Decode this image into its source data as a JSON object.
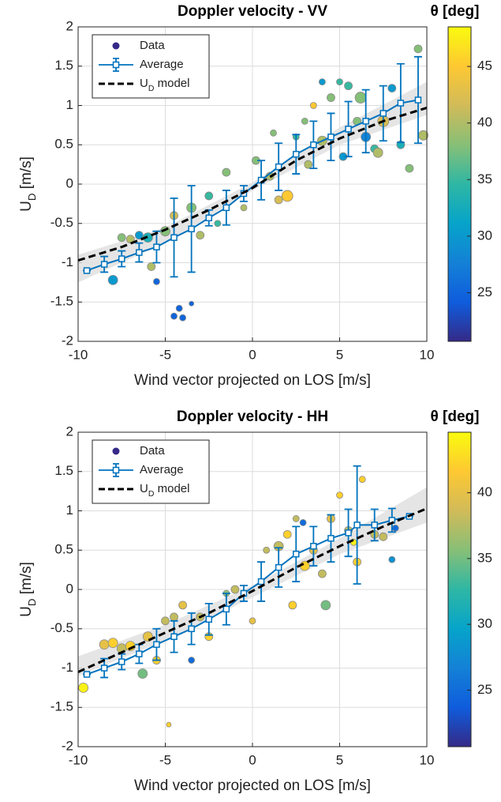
{
  "chart_data": [
    {
      "type": "scatter",
      "title": "Doppler velocity - VV",
      "xlabel": "Wind vector projected on LOS [m/s]",
      "ylabel": [
        "U",
        "D",
        " [m/s]"
      ],
      "xlim": [
        -10,
        10
      ],
      "ylim": [
        -2,
        2
      ],
      "xticks": [
        -10,
        -5,
        0,
        5,
        10
      ],
      "yticks": [
        -2,
        -1.5,
        -1,
        -0.5,
        0,
        0.5,
        1,
        1.5,
        2
      ],
      "grid": true,
      "legend": "upper left",
      "band": {
        "color": "#e0e0e0",
        "x": [
          -10,
          -5,
          0,
          5,
          10
        ],
        "lower": [
          -1.25,
          -0.75,
          -0.08,
          0.5,
          0.88
        ],
        "upper": [
          -0.9,
          -0.55,
          0.02,
          0.72,
          1.3
        ]
      },
      "series": [
        {
          "name": "Data",
          "style": "markers",
          "color": "#352a87",
          "x": [
            -8,
            -7.5,
            -7,
            -6.5,
            -6,
            -5.8,
            -5.5,
            -5,
            -4.5,
            -4.2,
            -4,
            -3.5,
            -4.5,
            -3.5,
            -3,
            -2.5,
            -2,
            -1.5,
            -0.5,
            0.2,
            1,
            1.2,
            1.5,
            2,
            2.5,
            3,
            3.2,
            3.5,
            4,
            4.5,
            5,
            5.2,
            5.5,
            6,
            6.2,
            6.5,
            7,
            7.5,
            8,
            8.5,
            9,
            9.5,
            9.8,
            4,
            7.2
          ],
          "y": [
            -1.22,
            -0.68,
            -0.7,
            -0.65,
            -0.68,
            -1.05,
            -1.24,
            -0.6,
            -1.68,
            -1.58,
            -1.7,
            -1.52,
            -0.4,
            -0.3,
            -0.65,
            -0.15,
            -0.5,
            0.15,
            -0.3,
            0.3,
            0.1,
            0.65,
            -0.2,
            -0.15,
            0.6,
            0.8,
            0.25,
            1.0,
            0.55,
            1.1,
            1.3,
            0.35,
            1.25,
            0.8,
            1.1,
            0.6,
            0.45,
            0.8,
            1.22,
            0.5,
            0.2,
            1.72,
            0.62,
            1.3,
            0.4
          ],
          "c": [
            30,
            38,
            40,
            30,
            33,
            40,
            25,
            38,
            25,
            25,
            25,
            25,
            42,
            38,
            40,
            35,
            35,
            38,
            40,
            38,
            40,
            38,
            42,
            45,
            35,
            38,
            40,
            45,
            40,
            38,
            35,
            30,
            35,
            38,
            38,
            28,
            35,
            42,
            30,
            33,
            38,
            38,
            40,
            30,
            40
          ],
          "size": [
            6,
            5,
            5,
            5,
            6,
            5,
            4,
            6,
            4,
            4,
            4,
            3,
            5,
            6,
            5,
            5,
            4,
            5,
            4,
            5,
            5,
            4,
            5,
            7,
            4,
            4,
            5,
            4,
            6,
            5,
            4,
            5,
            5,
            5,
            7,
            6,
            5,
            7,
            5,
            5,
            5,
            5,
            6,
            4,
            6
          ]
        },
        {
          "name": "Average",
          "style": "errorbar",
          "color": "#0072bd",
          "x": [
            -9.5,
            -8.5,
            -7.5,
            -6.5,
            -5.5,
            -4.5,
            -3.5,
            -2.5,
            -1.5,
            -0.5,
            0.5,
            1.5,
            2.5,
            3.5,
            4.5,
            5.5,
            6.5,
            7.5,
            8.5,
            9.5
          ],
          "y": [
            -1.1,
            -1.02,
            -0.95,
            -0.87,
            -0.8,
            -0.68,
            -0.57,
            -0.43,
            -0.3,
            -0.12,
            0.05,
            0.22,
            0.38,
            0.5,
            0.6,
            0.7,
            0.8,
            0.9,
            1.03,
            1.07
          ],
          "err": [
            0,
            0.1,
            0.1,
            0.12,
            0.2,
            0.5,
            0.55,
            0.1,
            0.22,
            0.1,
            0.25,
            0.3,
            0.25,
            0.3,
            0.3,
            0.35,
            0.4,
            0.35,
            0.5,
            0.55
          ]
        },
        {
          "name": [
            "U",
            "D",
            " model"
          ],
          "style": "dashed",
          "color": "#000000",
          "x": [
            -10,
            -7.5,
            -5,
            -2.5,
            0,
            2.5,
            5,
            7.5,
            10
          ],
          "y": [
            -0.97,
            -0.8,
            -0.58,
            -0.33,
            -0.05,
            0.3,
            0.58,
            0.8,
            0.97
          ]
        }
      ],
      "colorbar": {
        "title": "θ [deg]",
        "clim": [
          20.7,
          48.5
        ],
        "ticks": [
          25,
          30,
          35,
          40,
          45
        ],
        "colormap": [
          "#352a87",
          "#0f5cdd",
          "#1481d6",
          "#06a4ca",
          "#2eb7a4",
          "#87bf77",
          "#d1bb59",
          "#fec832",
          "#f9fb0e"
        ]
      }
    },
    {
      "type": "scatter",
      "title": "Doppler velocity - HH",
      "xlabel": "Wind vector projected on LOS [m/s]",
      "ylabel": [
        "U",
        "D",
        " [m/s]"
      ],
      "xlim": [
        -10,
        10
      ],
      "ylim": [
        -2,
        2
      ],
      "xticks": [
        -10,
        -5,
        0,
        5,
        10
      ],
      "yticks": [
        -2,
        -1.5,
        -1,
        -0.5,
        0,
        0.5,
        1,
        1.5,
        2
      ],
      "grid": true,
      "legend": "upper left",
      "band": {
        "color": "#e0e0e0",
        "x": [
          -10,
          -5,
          0,
          5,
          10
        ],
        "lower": [
          -1.1,
          -0.65,
          -0.1,
          0.45,
          0.85
        ],
        "upper": [
          -0.85,
          -0.45,
          0.05,
          0.65,
          1.3
        ]
      },
      "series": [
        {
          "name": "Data",
          "style": "markers",
          "color": "#352a87",
          "x": [
            -9.7,
            -8.5,
            -8,
            -7.5,
            -7,
            -6.3,
            -6,
            -5.5,
            -5,
            -4.8,
            -4.5,
            -4,
            -3.5,
            -3,
            -2.5,
            -1.5,
            -1,
            0,
            0.8,
            1.5,
            2,
            2.3,
            2.5,
            3,
            3.5,
            4,
            4.2,
            4.5,
            5,
            5.5,
            5.8,
            6,
            6.3,
            7,
            7.5,
            8,
            8.2,
            2.9
          ],
          "y": [
            -1.25,
            -0.7,
            -0.68,
            -0.75,
            -0.72,
            -1.07,
            -0.6,
            -0.9,
            -0.4,
            -1.72,
            -0.35,
            -0.2,
            -0.9,
            -0.35,
            -0.6,
            -0.05,
            0,
            -0.4,
            0.5,
            0.55,
            0.7,
            -0.2,
            0.9,
            0.3,
            0.5,
            0.2,
            -0.2,
            0.9,
            1.2,
            0.75,
            0.6,
            0.35,
            1.4,
            0.7,
            0.67,
            0.38,
            0.78,
            0.85
          ],
          "c": [
            44,
            40,
            42,
            38,
            42,
            35,
            40,
            42,
            38,
            42,
            38,
            40,
            25,
            38,
            42,
            36,
            38,
            40,
            38,
            38,
            42,
            42,
            38,
            42,
            40,
            38,
            35,
            40,
            42,
            38,
            44,
            42,
            42,
            38,
            38,
            28,
            25,
            25
          ],
          "size": [
            6,
            6,
            6,
            6,
            6,
            6,
            6,
            5,
            5,
            3,
            5,
            5,
            4,
            5,
            5,
            4,
            5,
            4,
            4,
            6,
            5,
            5,
            4,
            6,
            5,
            5,
            6,
            5,
            4,
            5,
            4,
            5,
            4,
            5,
            5,
            4,
            4,
            4
          ]
        },
        {
          "name": "Average",
          "style": "errorbar",
          "color": "#0072bd",
          "x": [
            -9.5,
            -8.5,
            -7.5,
            -6.5,
            -5.5,
            -4.5,
            -3.5,
            -2.5,
            -1.5,
            -0.5,
            0.5,
            1.5,
            2.5,
            3.5,
            4.5,
            5.5,
            6,
            7,
            8,
            9
          ],
          "y": [
            -1.08,
            -1.0,
            -0.92,
            -0.82,
            -0.7,
            -0.6,
            -0.5,
            -0.38,
            -0.25,
            -0.05,
            0.1,
            0.28,
            0.45,
            0.55,
            0.65,
            0.72,
            0.82,
            0.82,
            0.88,
            0.93
          ],
          "err": [
            0,
            0.12,
            0.1,
            0.12,
            0.2,
            0.2,
            0.2,
            0.2,
            0.2,
            0.1,
            0.25,
            0.25,
            0.35,
            0.25,
            0.3,
            0.3,
            0.75,
            0.2,
            0.15,
            0
          ]
        },
        {
          "name": [
            "U",
            "D",
            " model"
          ],
          "style": "dashed",
          "color": "#000000",
          "x": [
            -10,
            -7.5,
            -5,
            -2.5,
            0,
            2.5,
            5,
            7.5,
            10
          ],
          "y": [
            -1.05,
            -0.8,
            -0.55,
            -0.3,
            -0.02,
            0.28,
            0.55,
            0.8,
            1.03
          ]
        }
      ],
      "colorbar": {
        "title": "θ [deg]",
        "clim": [
          20.7,
          44.6
        ],
        "ticks": [
          25,
          30,
          35,
          40
        ],
        "colormap": [
          "#352a87",
          "#0f5cdd",
          "#1481d6",
          "#06a4ca",
          "#2eb7a4",
          "#87bf77",
          "#d1bb59",
          "#fec832",
          "#f9fb0e"
        ]
      }
    }
  ]
}
